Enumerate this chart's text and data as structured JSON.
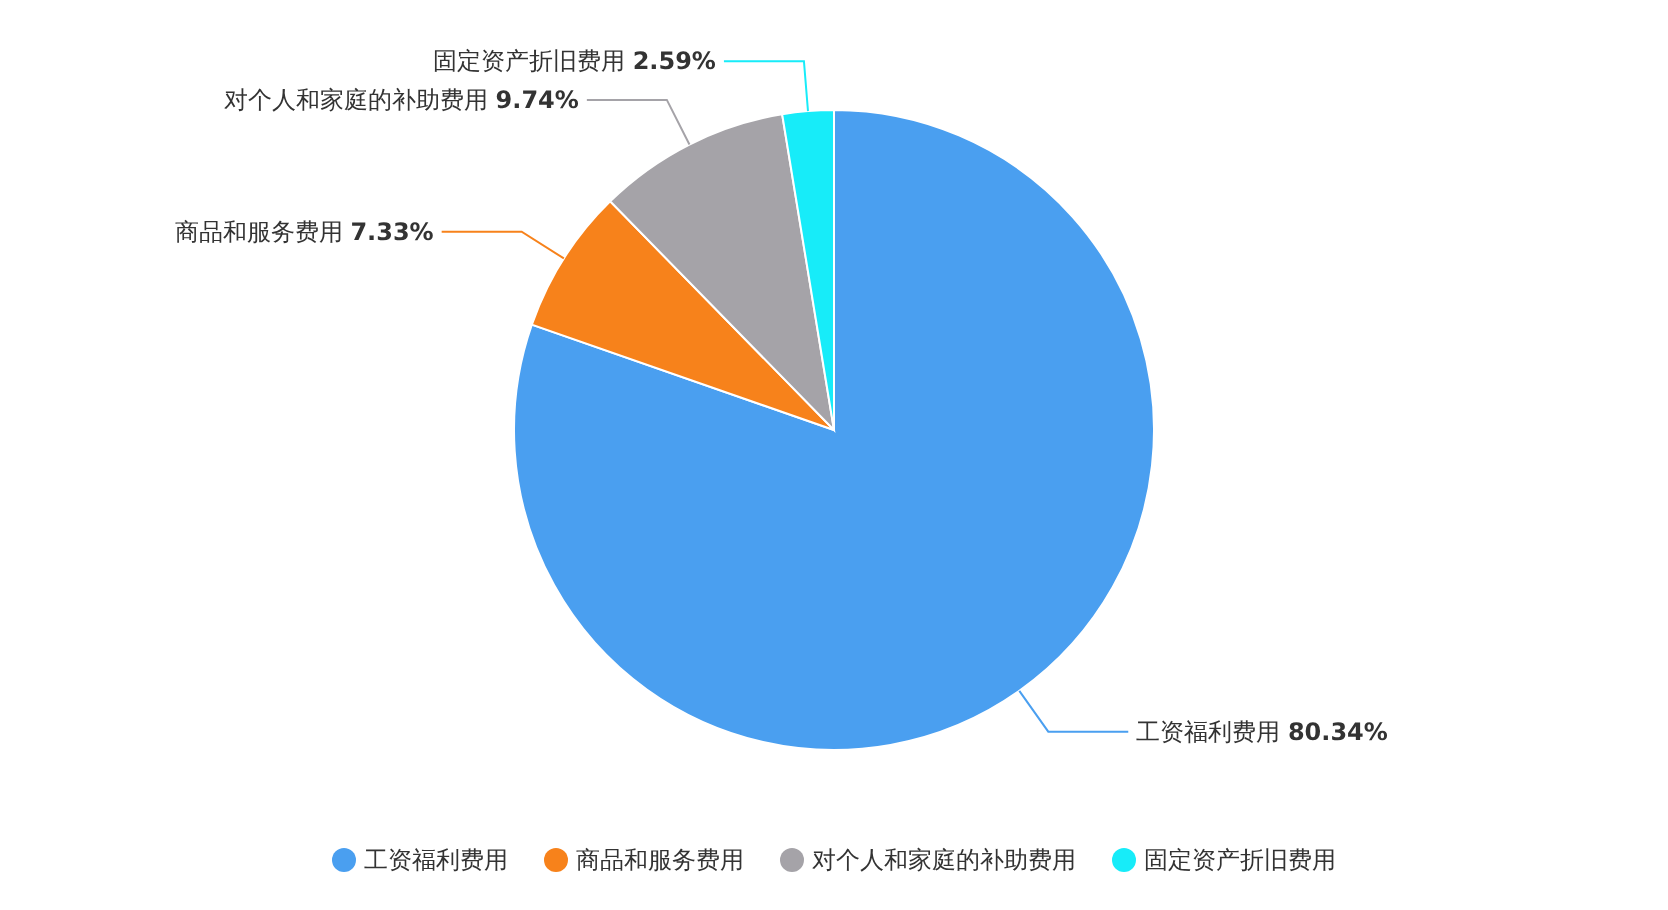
{
  "chart_data": {
    "type": "pie",
    "categories": [
      "工资福利费用",
      "商品和服务费用",
      "对个人和家庭的补助费用",
      "固定资产折旧费用"
    ],
    "values": [
      80.34,
      7.33,
      9.74,
      2.59
    ],
    "colors": [
      "#4a9ff0",
      "#f7821b",
      "#a5a3a8",
      "#17ecf9"
    ],
    "value_labels": [
      "80.34%",
      "7.33%",
      "9.74%",
      "2.59%"
    ],
    "legend": "bottom"
  }
}
